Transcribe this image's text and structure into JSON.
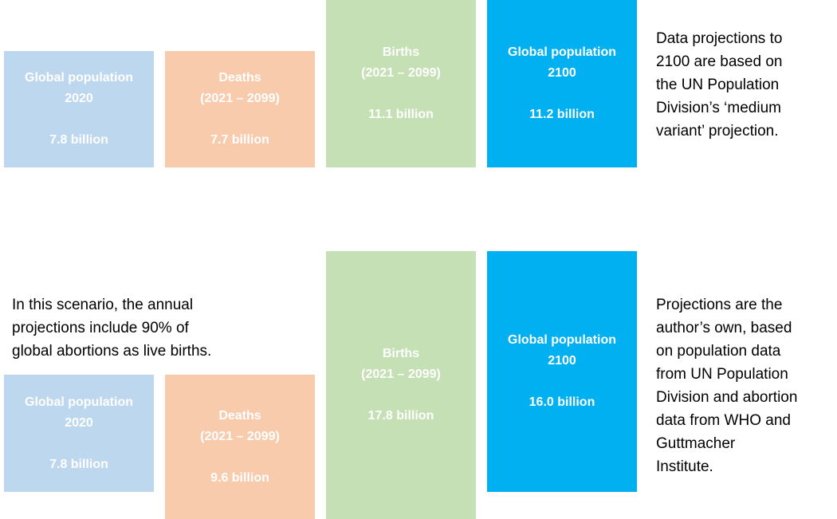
{
  "colors": {
    "population_2020": "#BDD7EE",
    "deaths": "#F8CBAD",
    "births": "#C5E0B4",
    "population_2100": "#00B0F0"
  },
  "scenario_1": {
    "population_2020": {
      "title": "Global  population",
      "year": "2020",
      "value": "7.8 billion"
    },
    "deaths": {
      "title": "Deaths",
      "period": "(2021 – 2099)",
      "value": "7.7 billion"
    },
    "births": {
      "title": "Births",
      "period": "(2021 – 2099)",
      "value": "11.1 billion"
    },
    "population_2100": {
      "title": "Global  population",
      "year": "2100",
      "value": "11.2 billion"
    },
    "note": [
      "Data projections to",
      "2100 are based on",
      "the UN Population",
      "Division’s ‘medium",
      "variant’ projection."
    ]
  },
  "scenario_2": {
    "intro": [
      "In this scenario, the annual",
      "projections include 90% of",
      "global abortions as live births."
    ],
    "population_2020": {
      "title": "Global  population",
      "year": "2020",
      "value": "7.8 billion"
    },
    "deaths": {
      "title": "Deaths",
      "period": "(2021 – 2099)",
      "value": "9.6 billion"
    },
    "births": {
      "title": "Births",
      "period": "(2021 – 2099)",
      "value": "17.8 billion"
    },
    "population_2100": {
      "title": "Global  population",
      "year": "2100",
      "value": "16.0 billion"
    },
    "note": [
      "Projections are the",
      "author’s own, based",
      "on population data",
      "from UN Population",
      "Division and abortion",
      "data from WHO and",
      "Guttmacher",
      "Institute."
    ]
  }
}
